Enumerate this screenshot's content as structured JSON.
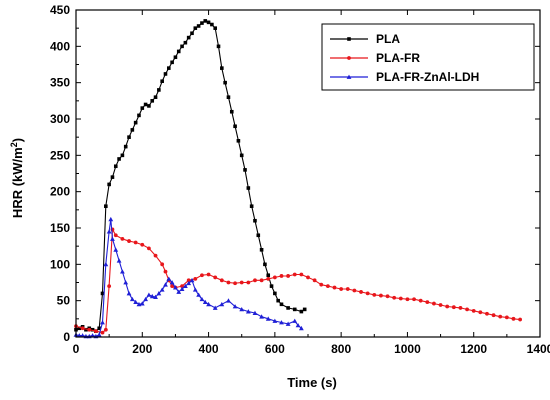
{
  "chart_data": {
    "type": "line",
    "xlabel": "Time (s)",
    "ylabel": "HRR  (kW/m",
    "ylabel_sup": "2",
    "ylabel_close": ")",
    "xlim": [
      0,
      1400
    ],
    "ylim": [
      0,
      450
    ],
    "xticks": [
      "0",
      "200",
      "400",
      "600",
      "800",
      "1000",
      "1200",
      "1400"
    ],
    "yticks": [
      "0",
      "50",
      "100",
      "150",
      "200",
      "250",
      "300",
      "350",
      "400",
      "450"
    ],
    "legend_position": "top-right",
    "series": [
      {
        "name": "PLA",
        "color": "#000000",
        "marker": "square",
        "points": [
          [
            0,
            10
          ],
          [
            10,
            12
          ],
          [
            20,
            14
          ],
          [
            30,
            10
          ],
          [
            40,
            12
          ],
          [
            50,
            10
          ],
          [
            60,
            8
          ],
          [
            70,
            12
          ],
          [
            80,
            60
          ],
          [
            90,
            180
          ],
          [
            100,
            210
          ],
          [
            110,
            220
          ],
          [
            120,
            235
          ],
          [
            130,
            245
          ],
          [
            140,
            250
          ],
          [
            150,
            262
          ],
          [
            160,
            275
          ],
          [
            170,
            285
          ],
          [
            180,
            295
          ],
          [
            190,
            305
          ],
          [
            200,
            315
          ],
          [
            210,
            320
          ],
          [
            220,
            318
          ],
          [
            230,
            325
          ],
          [
            240,
            330
          ],
          [
            250,
            340
          ],
          [
            260,
            352
          ],
          [
            270,
            362
          ],
          [
            280,
            370
          ],
          [
            290,
            378
          ],
          [
            300,
            385
          ],
          [
            310,
            393
          ],
          [
            320,
            400
          ],
          [
            330,
            405
          ],
          [
            340,
            412
          ],
          [
            350,
            418
          ],
          [
            360,
            425
          ],
          [
            370,
            428
          ],
          [
            380,
            432
          ],
          [
            390,
            435
          ],
          [
            400,
            433
          ],
          [
            410,
            430
          ],
          [
            420,
            425
          ],
          [
            430,
            400
          ],
          [
            440,
            370
          ],
          [
            450,
            350
          ],
          [
            460,
            330
          ],
          [
            470,
            310
          ],
          [
            480,
            290
          ],
          [
            490,
            270
          ],
          [
            500,
            250
          ],
          [
            510,
            230
          ],
          [
            520,
            205
          ],
          [
            530,
            180
          ],
          [
            540,
            160
          ],
          [
            550,
            140
          ],
          [
            560,
            120
          ],
          [
            570,
            100
          ],
          [
            580,
            85
          ],
          [
            590,
            70
          ],
          [
            600,
            60
          ],
          [
            610,
            50
          ],
          [
            620,
            45
          ],
          [
            640,
            40
          ],
          [
            660,
            38
          ],
          [
            680,
            35
          ],
          [
            690,
            38
          ]
        ]
      },
      {
        "name": "PLA-FR",
        "color": "#e8161b",
        "marker": "circle",
        "points": [
          [
            0,
            15
          ],
          [
            20,
            12
          ],
          [
            40,
            10
          ],
          [
            60,
            8
          ],
          [
            80,
            6
          ],
          [
            90,
            10
          ],
          [
            100,
            70
          ],
          [
            110,
            148
          ],
          [
            120,
            140
          ],
          [
            140,
            135
          ],
          [
            160,
            132
          ],
          [
            180,
            130
          ],
          [
            200,
            127
          ],
          [
            220,
            122
          ],
          [
            240,
            112
          ],
          [
            260,
            100
          ],
          [
            270,
            90
          ],
          [
            280,
            78
          ],
          [
            290,
            70
          ],
          [
            300,
            68
          ],
          [
            320,
            70
          ],
          [
            340,
            78
          ],
          [
            360,
            80
          ],
          [
            380,
            85
          ],
          [
            400,
            86
          ],
          [
            420,
            82
          ],
          [
            440,
            78
          ],
          [
            460,
            75
          ],
          [
            480,
            74
          ],
          [
            500,
            75
          ],
          [
            520,
            75
          ],
          [
            540,
            78
          ],
          [
            560,
            78
          ],
          [
            580,
            80
          ],
          [
            600,
            82
          ],
          [
            620,
            84
          ],
          [
            640,
            84
          ],
          [
            660,
            86
          ],
          [
            680,
            86
          ],
          [
            700,
            82
          ],
          [
            720,
            78
          ],
          [
            740,
            72
          ],
          [
            760,
            70
          ],
          [
            780,
            68
          ],
          [
            800,
            66
          ],
          [
            820,
            66
          ],
          [
            840,
            64
          ],
          [
            860,
            62
          ],
          [
            880,
            60
          ],
          [
            900,
            58
          ],
          [
            920,
            57
          ],
          [
            940,
            56
          ],
          [
            960,
            54
          ],
          [
            980,
            53
          ],
          [
            1000,
            52
          ],
          [
            1020,
            52
          ],
          [
            1040,
            50
          ],
          [
            1060,
            48
          ],
          [
            1080,
            46
          ],
          [
            1100,
            44
          ],
          [
            1120,
            42
          ],
          [
            1140,
            41
          ],
          [
            1160,
            40
          ],
          [
            1180,
            38
          ],
          [
            1200,
            36
          ],
          [
            1220,
            34
          ],
          [
            1240,
            32
          ],
          [
            1260,
            30
          ],
          [
            1280,
            28
          ],
          [
            1300,
            27
          ],
          [
            1320,
            25
          ],
          [
            1340,
            24
          ]
        ]
      },
      {
        "name": "PLA-FR-ZnAl-LDH",
        "color": "#1f1fd6",
        "marker": "triangle",
        "points": [
          [
            0,
            3
          ],
          [
            10,
            2
          ],
          [
            20,
            2
          ],
          [
            30,
            1
          ],
          [
            40,
            1
          ],
          [
            50,
            2
          ],
          [
            60,
            1
          ],
          [
            70,
            3
          ],
          [
            80,
            20
          ],
          [
            90,
            100
          ],
          [
            100,
            145
          ],
          [
            105,
            162
          ],
          [
            110,
            135
          ],
          [
            120,
            120
          ],
          [
            130,
            105
          ],
          [
            140,
            90
          ],
          [
            150,
            75
          ],
          [
            160,
            60
          ],
          [
            170,
            52
          ],
          [
            180,
            48
          ],
          [
            190,
            45
          ],
          [
            200,
            46
          ],
          [
            210,
            52
          ],
          [
            220,
            58
          ],
          [
            230,
            56
          ],
          [
            240,
            55
          ],
          [
            250,
            60
          ],
          [
            260,
            65
          ],
          [
            270,
            72
          ],
          [
            280,
            80
          ],
          [
            290,
            75
          ],
          [
            300,
            68
          ],
          [
            310,
            62
          ],
          [
            320,
            66
          ],
          [
            330,
            70
          ],
          [
            340,
            74
          ],
          [
            350,
            78
          ],
          [
            360,
            65
          ],
          [
            370,
            58
          ],
          [
            380,
            52
          ],
          [
            390,
            48
          ],
          [
            400,
            45
          ],
          [
            420,
            40
          ],
          [
            440,
            45
          ],
          [
            460,
            50
          ],
          [
            480,
            42
          ],
          [
            500,
            38
          ],
          [
            520,
            35
          ],
          [
            540,
            33
          ],
          [
            560,
            28
          ],
          [
            580,
            25
          ],
          [
            600,
            22
          ],
          [
            620,
            20
          ],
          [
            640,
            18
          ],
          [
            660,
            22
          ],
          [
            670,
            16
          ],
          [
            680,
            12
          ]
        ]
      }
    ]
  }
}
